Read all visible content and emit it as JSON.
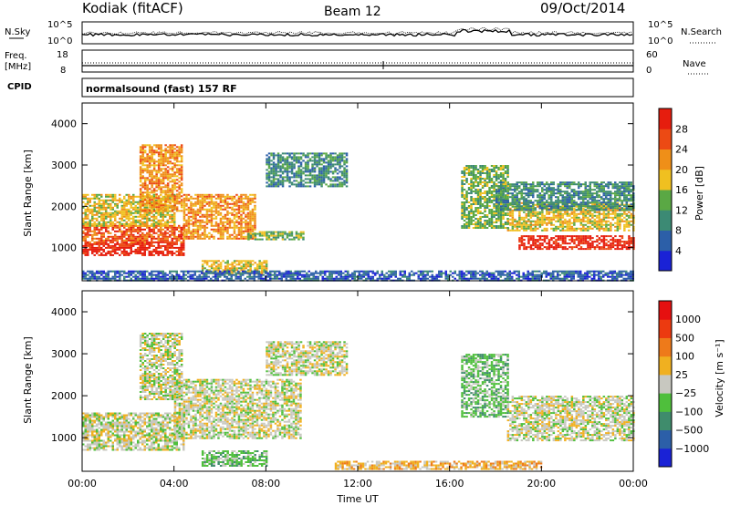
{
  "header": {
    "station": "Kodiak (fitACF)",
    "beam": "Beam 12",
    "date": "09/Oct/2014"
  },
  "noise_panel": {
    "left_label": "N.Sky",
    "right_label": "N.Search",
    "left_ticks": [
      "10^5",
      "10^0"
    ],
    "right_ticks": [
      "10^5",
      "10^0"
    ]
  },
  "freq_panel": {
    "left_label_1": "Freq.",
    "left_label_2": "[MHz]",
    "right_label": "Nave",
    "left_ticks": [
      "18",
      "8"
    ],
    "right_ticks": [
      "60",
      "0"
    ],
    "cpid_label": "CPID"
  },
  "cpid_text": "normalsound (fast) 157 RF",
  "chart_data": [
    {
      "type": "heatmap",
      "ylabel": "Slant Range [km]",
      "ylim": [
        200,
        4500
      ],
      "y_ticks": [
        "1000",
        "2000",
        "3000",
        "4000"
      ],
      "xlim": [
        0,
        24
      ],
      "colorbar": {
        "label": "Power [dB]",
        "ticks": [
          "4",
          "8",
          "12",
          "16",
          "20",
          "24",
          "28"
        ],
        "colors": [
          "#1a22d6",
          "#2c5fa8",
          "#3c8a74",
          "#5aa844",
          "#f0c020",
          "#ef8f18",
          "#ec4a14",
          "#e61d0e"
        ]
      },
      "patches": [
        {
          "t0": 0.0,
          "t1": 4.4,
          "r0": 800,
          "r1": 1150,
          "level": 7
        },
        {
          "t0": 0.0,
          "t1": 4.4,
          "r0": 1150,
          "r1": 1550,
          "level": 6
        },
        {
          "t0": 0.0,
          "t1": 4.0,
          "r0": 1550,
          "r1": 2300,
          "level": 4
        },
        {
          "t0": 2.5,
          "t1": 4.3,
          "r0": 1900,
          "r1": 3500,
          "level": 5
        },
        {
          "t0": 4.4,
          "t1": 7.5,
          "r0": 1200,
          "r1": 2300,
          "level": 5
        },
        {
          "t0": 5.2,
          "t1": 8.0,
          "r0": 350,
          "r1": 700,
          "level": 4
        },
        {
          "t0": 7.2,
          "t1": 9.6,
          "r0": 1200,
          "r1": 1400,
          "level": 3
        },
        {
          "t0": 8.0,
          "t1": 11.5,
          "r0": 2500,
          "r1": 3300,
          "level": 2
        },
        {
          "t0": 16.5,
          "t1": 18.5,
          "r0": 1500,
          "r1": 3000,
          "level": 3
        },
        {
          "t0": 18.5,
          "t1": 24.0,
          "r0": 1400,
          "r1": 2100,
          "level": 4
        },
        {
          "t0": 19.0,
          "t1": 24.0,
          "r0": 950,
          "r1": 1300,
          "level": 7
        },
        {
          "t0": 18.0,
          "t1": 24.0,
          "r0": 1900,
          "r1": 2600,
          "level": 2
        },
        {
          "t0": 0.0,
          "t1": 24.0,
          "r0": 200,
          "r1": 450,
          "level": 1
        }
      ]
    },
    {
      "type": "heatmap",
      "ylabel": "Slant Range [km]",
      "ylim": [
        200,
        4500
      ],
      "y_ticks": [
        "1000",
        "2000",
        "3000",
        "4000"
      ],
      "xlim": [
        0,
        24
      ],
      "x_ticks": [
        "00:00",
        "04:00",
        "08:00",
        "12:00",
        "16:00",
        "20:00",
        "00:00"
      ],
      "xlabel": "Time UT",
      "colorbar": {
        "label": "Velocity [m s⁻¹]",
        "ticks": [
          "1000",
          "500",
          "100",
          "25",
          "−25",
          "−100",
          "−500",
          "−1000"
        ],
        "colors": [
          "#1a22d6",
          "#2c5fa8",
          "#3f8c6c",
          "#4fbf3c",
          "#c8c8c0",
          "#f0b020",
          "#ee7a1a",
          "#ec3a10",
          "#e61010"
        ]
      },
      "patches": [
        {
          "t0": 0.0,
          "t1": 4.4,
          "r0": 700,
          "r1": 1600,
          "level": 4
        },
        {
          "t0": 4.0,
          "t1": 9.5,
          "r0": 1000,
          "r1": 2400,
          "level": 4
        },
        {
          "t0": 2.5,
          "t1": 4.3,
          "r0": 1900,
          "r1": 3500,
          "level": 4
        },
        {
          "t0": 5.2,
          "t1": 8.0,
          "r0": 350,
          "r1": 700,
          "level": 3
        },
        {
          "t0": 8.0,
          "t1": 11.5,
          "r0": 2500,
          "r1": 3300,
          "level": 4
        },
        {
          "t0": 16.5,
          "t1": 18.5,
          "r0": 1500,
          "r1": 3000,
          "level": 3
        },
        {
          "t0": 18.5,
          "t1": 24.0,
          "r0": 950,
          "r1": 2000,
          "level": 4
        },
        {
          "t0": 11.0,
          "t1": 20.0,
          "r0": 250,
          "r1": 450,
          "level": 5
        }
      ]
    }
  ]
}
